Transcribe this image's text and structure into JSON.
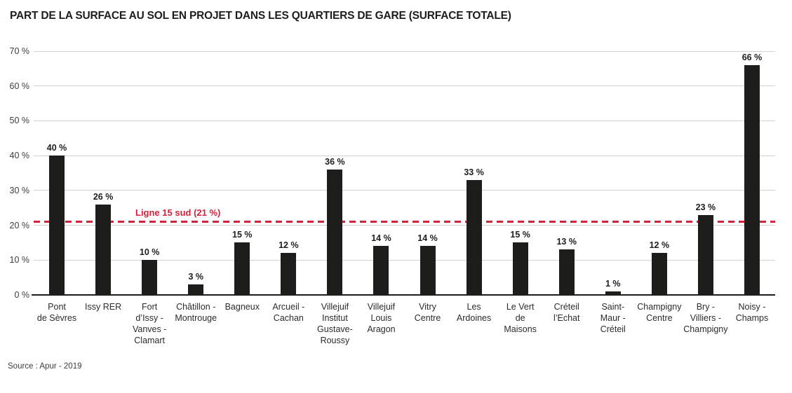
{
  "page": {
    "title": "PART DE LA SURFACE AU SOL EN PROJET DANS LES QUARTIERS DE GARE (SURFACE TOTALE)",
    "source": "Source : Apur - 2019"
  },
  "colors": {
    "bar": "#1d1d1b",
    "grid": "#cfcfcf",
    "axis": "#1d1d1b",
    "accent_red": "#d0233c",
    "text": "#1d1d1b"
  },
  "chart_data": {
    "type": "bar",
    "title": "PART DE LA SURFACE AU SOL EN PROJET DANS LES QUARTIERS DE GARE (SURFACE TOTALE)",
    "categories": [
      "Pont\nde Sèvres",
      "Issy RER",
      "Fort\nd’Issy -\nVanves -\nClamart",
      "Châtillon -\nMontrouge",
      "Bagneux",
      "Arcueil -\nCachan",
      "Villejuif\nInstitut\nGustave-\nRoussy",
      "Villejuif\nLouis\nAragon",
      "Vitry\nCentre",
      "Les\nArdoines",
      "Le Vert\nde\nMaisons",
      "Créteil\nl’Echat",
      "Saint-\nMaur -\nCréteil",
      "Champigny\nCentre",
      "Bry -\nVilliers -\nChampigny",
      "Noisy -\nChamps"
    ],
    "values": [
      40,
      26,
      10,
      3,
      15,
      12,
      36,
      14,
      14,
      33,
      15,
      13,
      1,
      12,
      23,
      66
    ],
    "bar_value_suffix": " %",
    "xlabel": "",
    "ylabel": "",
    "ylim": [
      0,
      70
    ],
    "yticks": [
      0,
      10,
      20,
      30,
      40,
      50,
      60,
      70
    ],
    "ytick_suffix": " %",
    "grid": "horizontal",
    "legend": "none",
    "annotation": {
      "label": "Ligne 15 sud (21 %)",
      "value": 21,
      "style": "dashed"
    },
    "source": "Source : Apur - 2019"
  }
}
